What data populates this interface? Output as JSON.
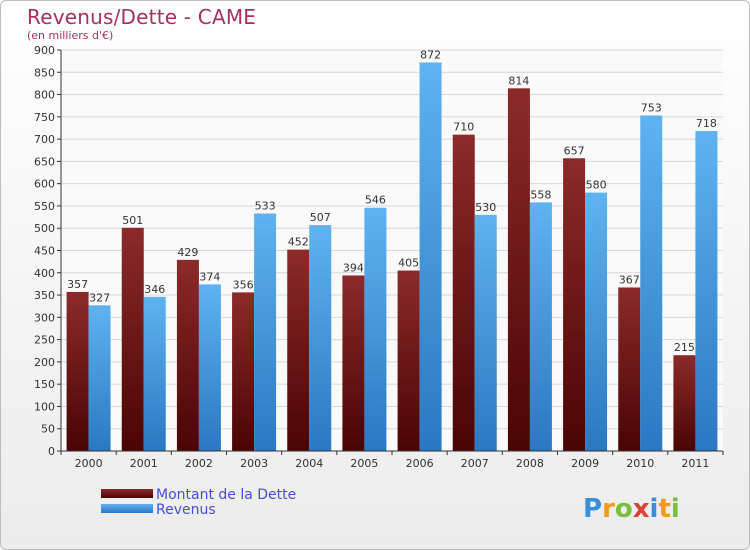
{
  "chart_data": {
    "type": "bar",
    "title": "Revenus/Dette - CAME",
    "subtitle": "(en milliers d'€)",
    "categories": [
      "2000",
      "2001",
      "2002",
      "2003",
      "2004",
      "2005",
      "2006",
      "2007",
      "2008",
      "2009",
      "2010",
      "2011"
    ],
    "series": [
      {
        "name": "Montant de la Dette",
        "color": "#7a1a1a",
        "values": [
          357,
          501,
          429,
          356,
          452,
          394,
          405,
          710,
          814,
          657,
          367,
          215
        ]
      },
      {
        "name": "Revenus",
        "color": "#4aa3e8",
        "values": [
          327,
          346,
          374,
          533,
          507,
          546,
          872,
          530,
          558,
          580,
          753,
          718
        ]
      }
    ],
    "ylim": [
      0,
      900
    ],
    "yticks": [
      0,
      50,
      100,
      150,
      200,
      250,
      300,
      350,
      400,
      450,
      500,
      550,
      600,
      650,
      700,
      750,
      800,
      850,
      900
    ],
    "grid": true,
    "legend": "bottom-left"
  },
  "brand": {
    "letters": [
      "P",
      "r",
      "o",
      "x",
      "i",
      "t",
      "i"
    ],
    "colors": [
      "#3a8fd9",
      "#f29a1f",
      "#7bbf3a",
      "#e0403a",
      "#3a8fd9",
      "#f29a1f",
      "#7bbf3a"
    ]
  }
}
